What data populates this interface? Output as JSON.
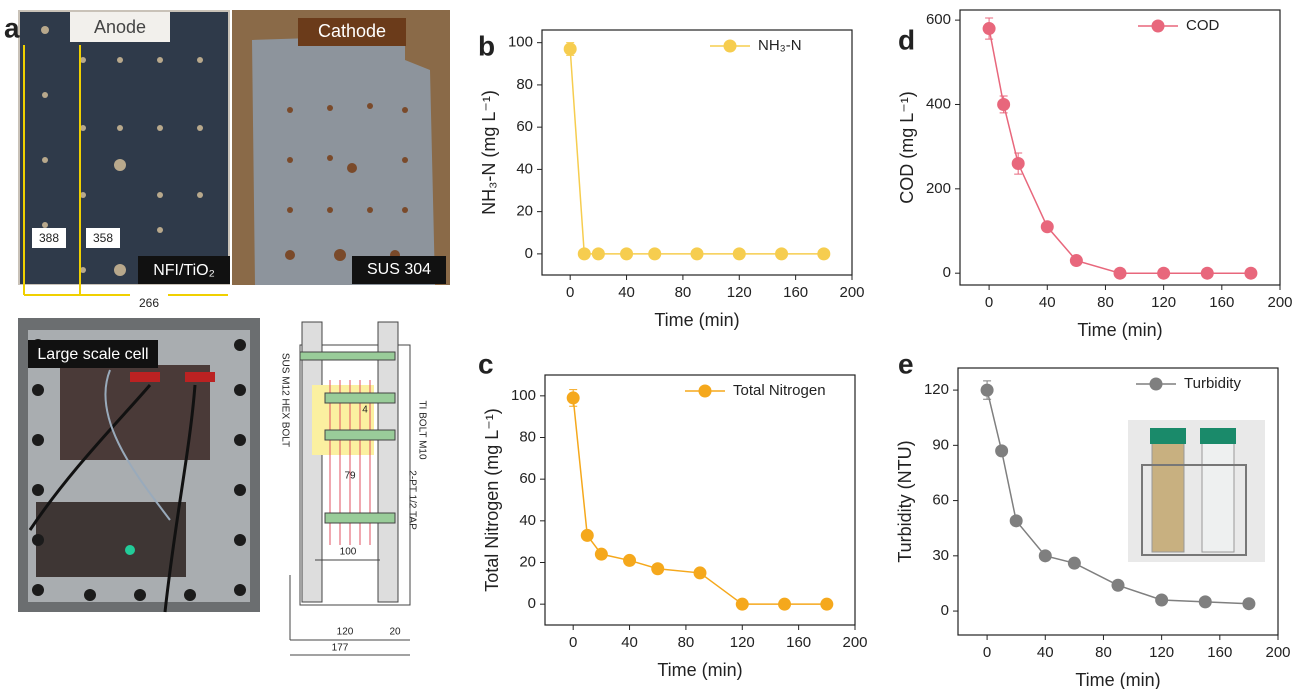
{
  "panel_a": {
    "letter": "a",
    "anode": "Anode",
    "cathode": "Cathode",
    "dim_388": "388",
    "dim_358": "358",
    "dim_266": "266",
    "anode_label": "NFI/TiO₂",
    "cathode_label": "SUS 304",
    "cell_label": "Large scale cell",
    "drawing": {
      "bolt": "SUS M12 HEX BOLT",
      "ti_bolt": "TI BOLT M10",
      "tap": "2-PT 1/2 TAP",
      "d4": "4",
      "d79": "79",
      "d100": "100",
      "d120": "120",
      "d20": "20",
      "d177": "177"
    }
  },
  "chart_data": [
    {
      "type": "line",
      "panel_label": "b",
      "x_label": "Time (min)",
      "y_label": "NH₃-N (mg L⁻¹)",
      "x": [
        0,
        10,
        20,
        40,
        60,
        90,
        120,
        150,
        180
      ],
      "series": [
        {
          "name": "NH₃-N",
          "color": "#f6cd4f",
          "values": [
            97,
            0,
            0,
            0,
            0,
            0,
            0,
            0,
            0
          ],
          "errors": [
            3,
            0,
            0,
            0,
            0,
            0,
            0,
            0,
            0
          ]
        }
      ],
      "xlim": [
        -20,
        200
      ],
      "xticks": [
        0,
        40,
        80,
        120,
        160,
        200
      ],
      "ylim": [
        -10,
        106
      ],
      "yticks": [
        0,
        20,
        40,
        60,
        80,
        100
      ],
      "legend": "upper right"
    },
    {
      "type": "line",
      "panel_label": "c",
      "x_label": "Time (min)",
      "y_label": "Total Nitrogen (mg L⁻¹)",
      "x": [
        0,
        10,
        20,
        40,
        60,
        90,
        120,
        150,
        180
      ],
      "series": [
        {
          "name": "Total Nitrogen",
          "color": "#f5a81c",
          "values": [
            99,
            33,
            24,
            21,
            17,
            15,
            0,
            0,
            0
          ],
          "errors": [
            4,
            0,
            0,
            0,
            0,
            0,
            0,
            0,
            0
          ]
        }
      ],
      "xlim": [
        -20,
        200
      ],
      "xticks": [
        0,
        40,
        80,
        120,
        160,
        200
      ],
      "ylim": [
        -10,
        110
      ],
      "yticks": [
        0,
        20,
        40,
        60,
        80,
        100
      ],
      "legend": "upper right"
    },
    {
      "type": "line",
      "panel_label": "d",
      "x_label": "Time (min)",
      "y_label": "COD (mg L⁻¹)",
      "x": [
        0,
        10,
        20,
        40,
        60,
        90,
        120,
        150,
        180
      ],
      "series": [
        {
          "name": "COD",
          "color": "#e8677c",
          "values": [
            580,
            400,
            260,
            110,
            30,
            0,
            0,
            0,
            0
          ],
          "errors": [
            25,
            20,
            25,
            0,
            0,
            0,
            0,
            0,
            0
          ]
        }
      ],
      "xlim": [
        -20,
        200
      ],
      "xticks": [
        0,
        40,
        80,
        120,
        160,
        200
      ],
      "ylim": [
        -28,
        624
      ],
      "yticks": [
        0,
        200,
        400,
        600
      ],
      "legend": "upper right"
    },
    {
      "type": "line",
      "panel_label": "e",
      "x_label": "Time (min)",
      "y_label": "Turbidity (NTU)",
      "x": [
        0,
        10,
        20,
        40,
        60,
        90,
        120,
        150,
        180
      ],
      "series": [
        {
          "name": "Turbidity",
          "color": "#7f7f7f",
          "values": [
            120,
            87,
            49,
            30,
            26,
            14,
            6,
            5,
            4
          ],
          "errors": [
            5,
            0,
            0,
            0,
            0,
            0,
            0,
            0,
            0
          ]
        }
      ],
      "xlim": [
        -20,
        200
      ],
      "xticks": [
        0,
        40,
        80,
        120,
        160,
        200
      ],
      "ylim": [
        -13,
        132
      ],
      "yticks": [
        0,
        30,
        60,
        90,
        120
      ],
      "legend": "upper right"
    }
  ]
}
